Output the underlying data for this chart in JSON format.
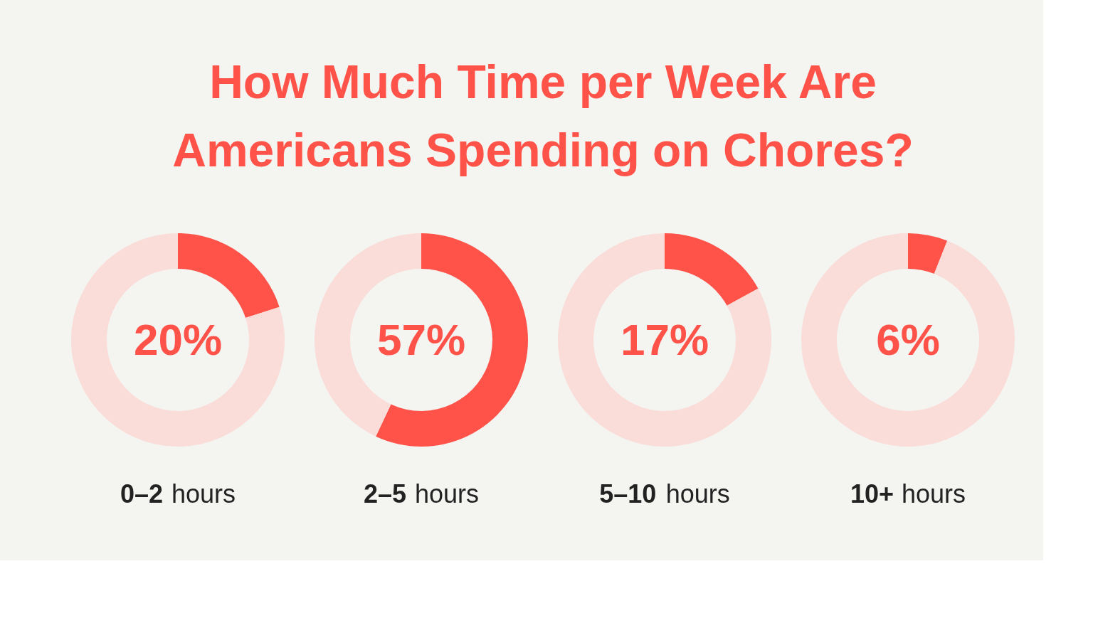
{
  "chart_data": [
    {
      "type": "donut",
      "title": "How Much Time per Week Are Americans Spending on Chores?",
      "xlabel": "0–2 hours",
      "categories": [
        null,
        null
      ],
      "values": [
        20,
        80
      ],
      "colors": [
        "#ff534a",
        "#fadcd8"
      ],
      "value_labels": [
        "20%",
        null
      ]
    },
    {
      "type": "donut",
      "xlabel": "2–5 hours",
      "categories": [
        null,
        null
      ],
      "values": [
        57,
        43
      ],
      "colors": [
        "#ff534a",
        "#fadcd8"
      ],
      "value_labels": [
        "57%",
        null
      ]
    },
    {
      "type": "donut",
      "xlabel": "5–10 hours",
      "categories": [
        null,
        null
      ],
      "values": [
        17,
        83
      ],
      "colors": [
        "#ff534a",
        "#fadcd8"
      ],
      "value_labels": [
        "17%",
        null
      ]
    },
    {
      "type": "donut",
      "xlabel": "10+ hours",
      "categories": [
        null,
        null
      ],
      "values": [
        6,
        94
      ],
      "colors": [
        "#ff534a",
        "#fadcd8"
      ],
      "value_labels": [
        "6%",
        null
      ]
    }
  ]
}
